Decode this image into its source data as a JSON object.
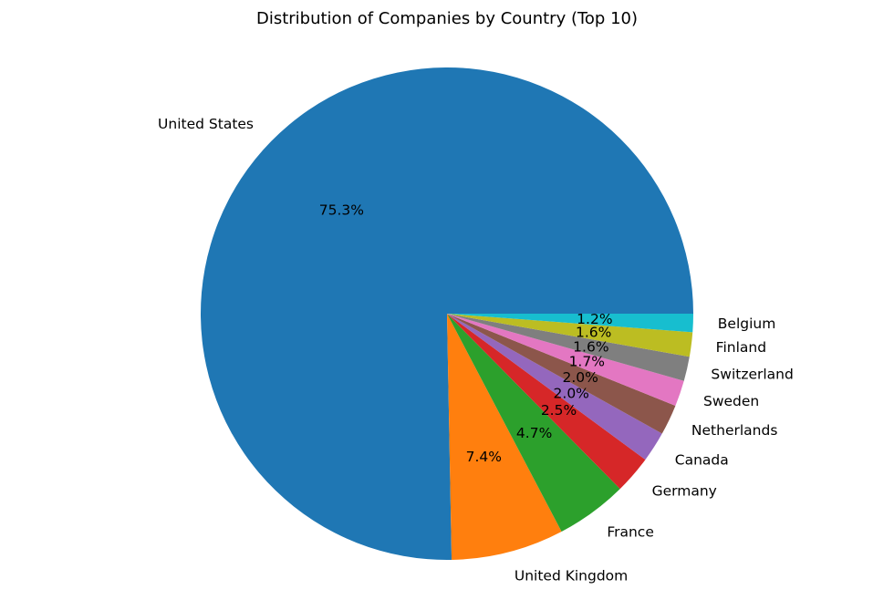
{
  "chart_data": {
    "type": "pie",
    "title": "Distribution of Companies by Country (Top 10)",
    "slices": [
      {
        "label": "United States",
        "value": 75.3,
        "pct_label": "75.3%",
        "color": "#1f77b4"
      },
      {
        "label": "United Kingdom",
        "value": 7.4,
        "pct_label": "7.4%",
        "color": "#ff7f0e"
      },
      {
        "label": "France",
        "value": 4.7,
        "pct_label": "4.7%",
        "color": "#2ca02c"
      },
      {
        "label": "Germany",
        "value": 2.5,
        "pct_label": "2.5%",
        "color": "#d62728"
      },
      {
        "label": "Canada",
        "value": 2.0,
        "pct_label": "2.0%",
        "color": "#9467bd"
      },
      {
        "label": "Netherlands",
        "value": 2.0,
        "pct_label": "2.0%",
        "color": "#8c564b"
      },
      {
        "label": "Sweden",
        "value": 1.7,
        "pct_label": "1.7%",
        "color": "#e377c2"
      },
      {
        "label": "Switzerland",
        "value": 1.6,
        "pct_label": "1.6%",
        "color": "#7f7f7f"
      },
      {
        "label": "Finland",
        "value": 1.6,
        "pct_label": "1.6%",
        "color": "#bcbd22"
      },
      {
        "label": "Belgium",
        "value": 1.2,
        "pct_label": "1.2%",
        "color": "#17becf"
      }
    ],
    "start_angle_deg": 0,
    "direction": "counterclockwise",
    "legend": "none"
  }
}
